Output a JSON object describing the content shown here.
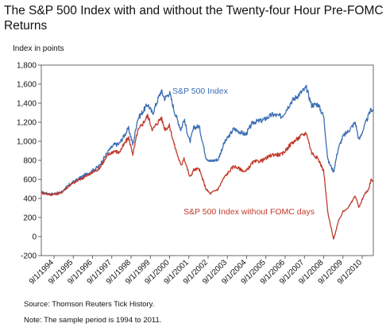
{
  "title": "The S&P 500 Index with and without the Twenty-four Hour Pre-FOMC Returns",
  "source": "Source: Thomson Reuters Tick History.",
  "note": "Note: The sample period is 1994 to 2011.",
  "colors": {
    "sp500": "#3b6db3",
    "without_fomc": "#c0392b"
  },
  "chart_data": {
    "type": "line",
    "title": "The S&P 500 Index with and without the Twenty-four Hour Pre-FOMC Returns",
    "xlabel": "",
    "ylabel": "Index in points",
    "ylim": [
      -200,
      1800
    ],
    "yticks": [
      -200,
      0,
      200,
      400,
      600,
      800,
      1000,
      1200,
      1400,
      1600,
      1800
    ],
    "ytick_labels": [
      "-200",
      "0",
      "200",
      "400",
      "600",
      "800",
      "1,000",
      "1,200",
      "1,400",
      "1,600",
      "1,800"
    ],
    "xlim": [
      "1994-01-03",
      "2011-03-31"
    ],
    "xticks": [
      "1994-09-01",
      "1995-09-01",
      "1996-09-01",
      "1997-09-01",
      "1998-09-01",
      "1999-09-01",
      "2000-09-01",
      "2001-09-01",
      "2002-09-01",
      "2003-09-01",
      "2004-09-01",
      "2005-09-01",
      "2006-09-01",
      "2007-09-01",
      "2008-09-01",
      "2009-09-01",
      "2010-09-01"
    ],
    "xtick_labels": [
      "9/1/1994",
      "9/1/1995",
      "9/1/1996",
      "9/1/1997",
      "9/1/1998",
      "9/1/1999",
      "9/1/2000",
      "9/1/2001",
      "9/1/2002",
      "9/1/2003",
      "9/1/2004",
      "9/1/2005",
      "9/1/2006",
      "9/1/2007",
      "9/1/2008",
      "9/1/2009",
      "9/1/2010"
    ],
    "grid": false,
    "series": [
      {
        "name": "S&P 500 Index",
        "label_text": "S&P 500 Index",
        "color": "#3b6db3",
        "x": [
          "1994-01-03",
          "1994-07-01",
          "1995-01-01",
          "1995-07-01",
          "1996-01-01",
          "1996-07-01",
          "1997-01-01",
          "1997-07-01",
          "1997-10-15",
          "1998-01-15",
          "1998-07-15",
          "1998-10-08",
          "1999-01-01",
          "1999-07-15",
          "1999-10-15",
          "2000-03-24",
          "2000-06-01",
          "2000-09-01",
          "2000-12-01",
          "2001-04-04",
          "2001-06-01",
          "2001-09-21",
          "2001-12-01",
          "2002-03-15",
          "2002-07-23",
          "2002-10-09",
          "2003-03-11",
          "2003-07-01",
          "2004-01-01",
          "2004-08-12",
          "2005-01-01",
          "2005-07-01",
          "2006-01-01",
          "2006-07-01",
          "2007-01-01",
          "2007-07-15",
          "2007-10-09",
          "2008-01-15",
          "2008-05-15",
          "2008-09-01",
          "2008-11-20",
          "2009-03-09",
          "2009-06-01",
          "2009-09-01",
          "2010-01-01",
          "2010-04-23",
          "2010-07-02",
          "2010-10-01",
          "2011-01-01",
          "2011-02-18",
          "2011-03-31"
        ],
        "y": [
          465,
          445,
          460,
          550,
          615,
          670,
          740,
          900,
          965,
          970,
          1135,
          960,
          1230,
          1390,
          1290,
          1530,
          1450,
          1510,
          1315,
          1120,
          1230,
          990,
          1140,
          1160,
          830,
          790,
          810,
          980,
          1130,
          1070,
          1200,
          1220,
          1280,
          1260,
          1420,
          1520,
          1560,
          1380,
          1390,
          1260,
          800,
          680,
          920,
          1050,
          1120,
          1200,
          1010,
          1140,
          1270,
          1340,
          1320
        ]
      },
      {
        "name": "S&P 500 Index without FOMC days",
        "label_text": "S&P 500 Index without FOMC days",
        "color": "#c0392b",
        "x": [
          "1994-01-03",
          "1994-07-01",
          "1995-01-01",
          "1995-07-01",
          "1996-01-01",
          "1996-07-01",
          "1997-01-01",
          "1997-07-01",
          "1997-10-15",
          "1998-01-15",
          "1998-07-15",
          "1998-10-08",
          "1999-01-01",
          "1999-07-15",
          "1999-10-15",
          "2000-03-24",
          "2000-06-01",
          "2000-09-01",
          "2000-12-01",
          "2001-04-04",
          "2001-06-01",
          "2001-09-21",
          "2001-12-01",
          "2002-03-15",
          "2002-07-23",
          "2002-10-09",
          "2003-03-11",
          "2003-07-01",
          "2004-01-01",
          "2004-08-12",
          "2005-01-01",
          "2005-07-01",
          "2006-01-01",
          "2006-07-01",
          "2007-01-01",
          "2007-07-15",
          "2007-10-09",
          "2008-01-15",
          "2008-05-15",
          "2008-09-01",
          "2008-11-20",
          "2009-03-09",
          "2009-06-01",
          "2009-09-01",
          "2010-01-01",
          "2010-04-23",
          "2010-07-02",
          "2010-10-01",
          "2011-01-01",
          "2011-02-18",
          "2011-03-31"
        ],
        "y": [
          460,
          440,
          455,
          540,
          600,
          650,
          715,
          860,
          900,
          880,
          1040,
          860,
          1100,
          1270,
          1120,
          1250,
          1130,
          1160,
          960,
          740,
          830,
          620,
          700,
          710,
          500,
          450,
          500,
          620,
          740,
          680,
          780,
          800,
          860,
          860,
          980,
          1060,
          1090,
          880,
          820,
          690,
          240,
          -30,
          150,
          260,
          320,
          430,
          300,
          430,
          500,
          600,
          580
        ]
      }
    ]
  }
}
